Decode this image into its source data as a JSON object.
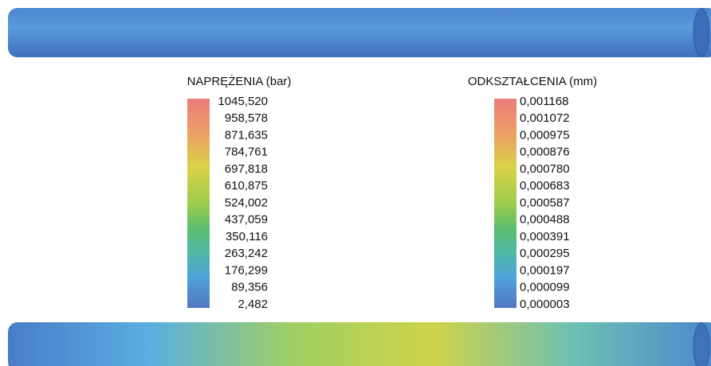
{
  "legends": [
    {
      "title": "NAPRĘŻENIA (bar)",
      "labels": [
        "1045,520",
        "958,578",
        "871,635",
        "784,761",
        "697,818",
        "610,875",
        "524,002",
        "437,059",
        "350,116",
        "263,242",
        "176,299",
        "89,356",
        "2,482"
      ]
    },
    {
      "title": "ODKSZTAŁCENIA (mm)",
      "labels": [
        "0,001168",
        "0,001072",
        "0,000975",
        "0,000876",
        "0,000780",
        "0,000683",
        "0,000587",
        "0,000488",
        "0,000391",
        "0,000295",
        "0,000197",
        "0,000099",
        "0,000003"
      ]
    }
  ]
}
